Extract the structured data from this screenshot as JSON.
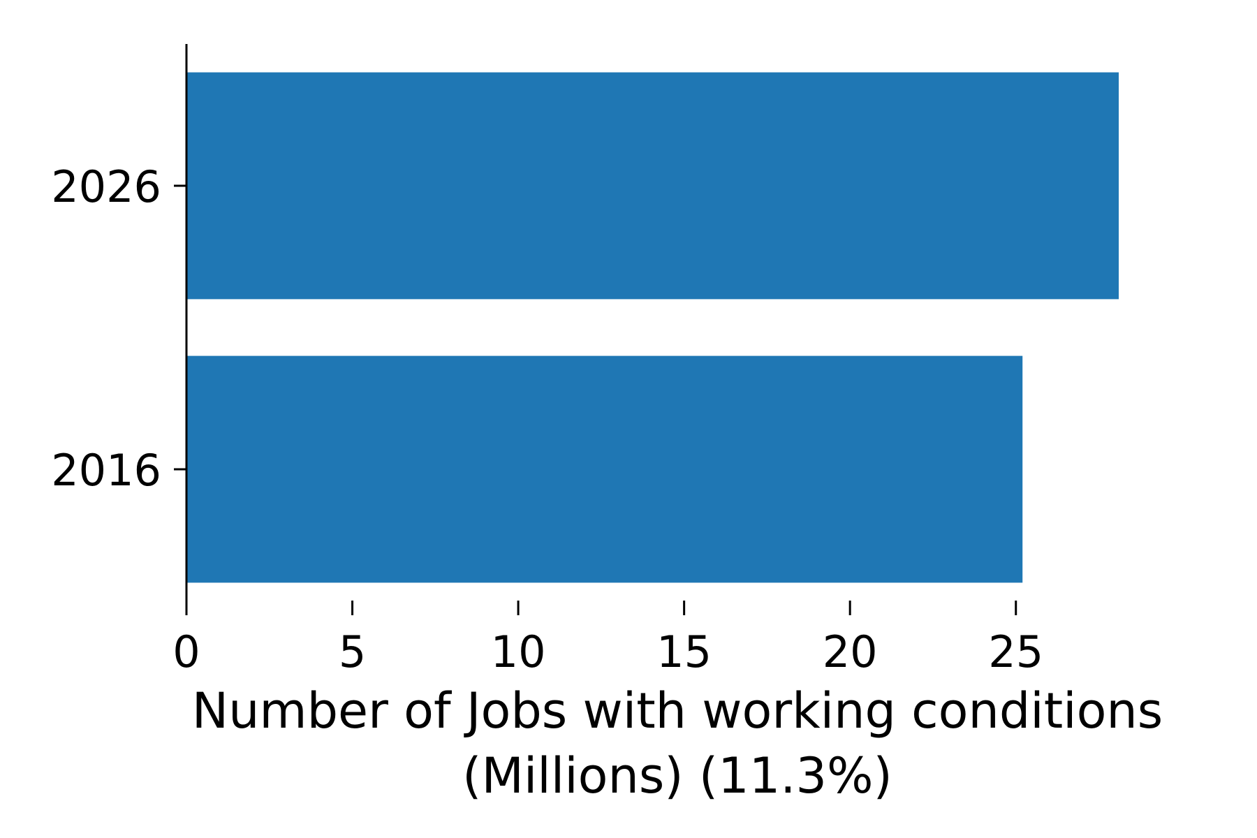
{
  "chart_data": {
    "type": "bar",
    "orientation": "horizontal",
    "categories": [
      "2016",
      "2026"
    ],
    "values": [
      25.2,
      28.1
    ],
    "bar_color": "#1f77b4",
    "xlabel_lines": [
      "Number of Jobs with working conditions",
      "(Millions) (11.3%)"
    ],
    "ylabel": "",
    "title": "",
    "xlim": [
      0,
      28.1
    ],
    "xticks": [
      0,
      5,
      10,
      15,
      20,
      25
    ],
    "grid": false,
    "legend": "none"
  }
}
